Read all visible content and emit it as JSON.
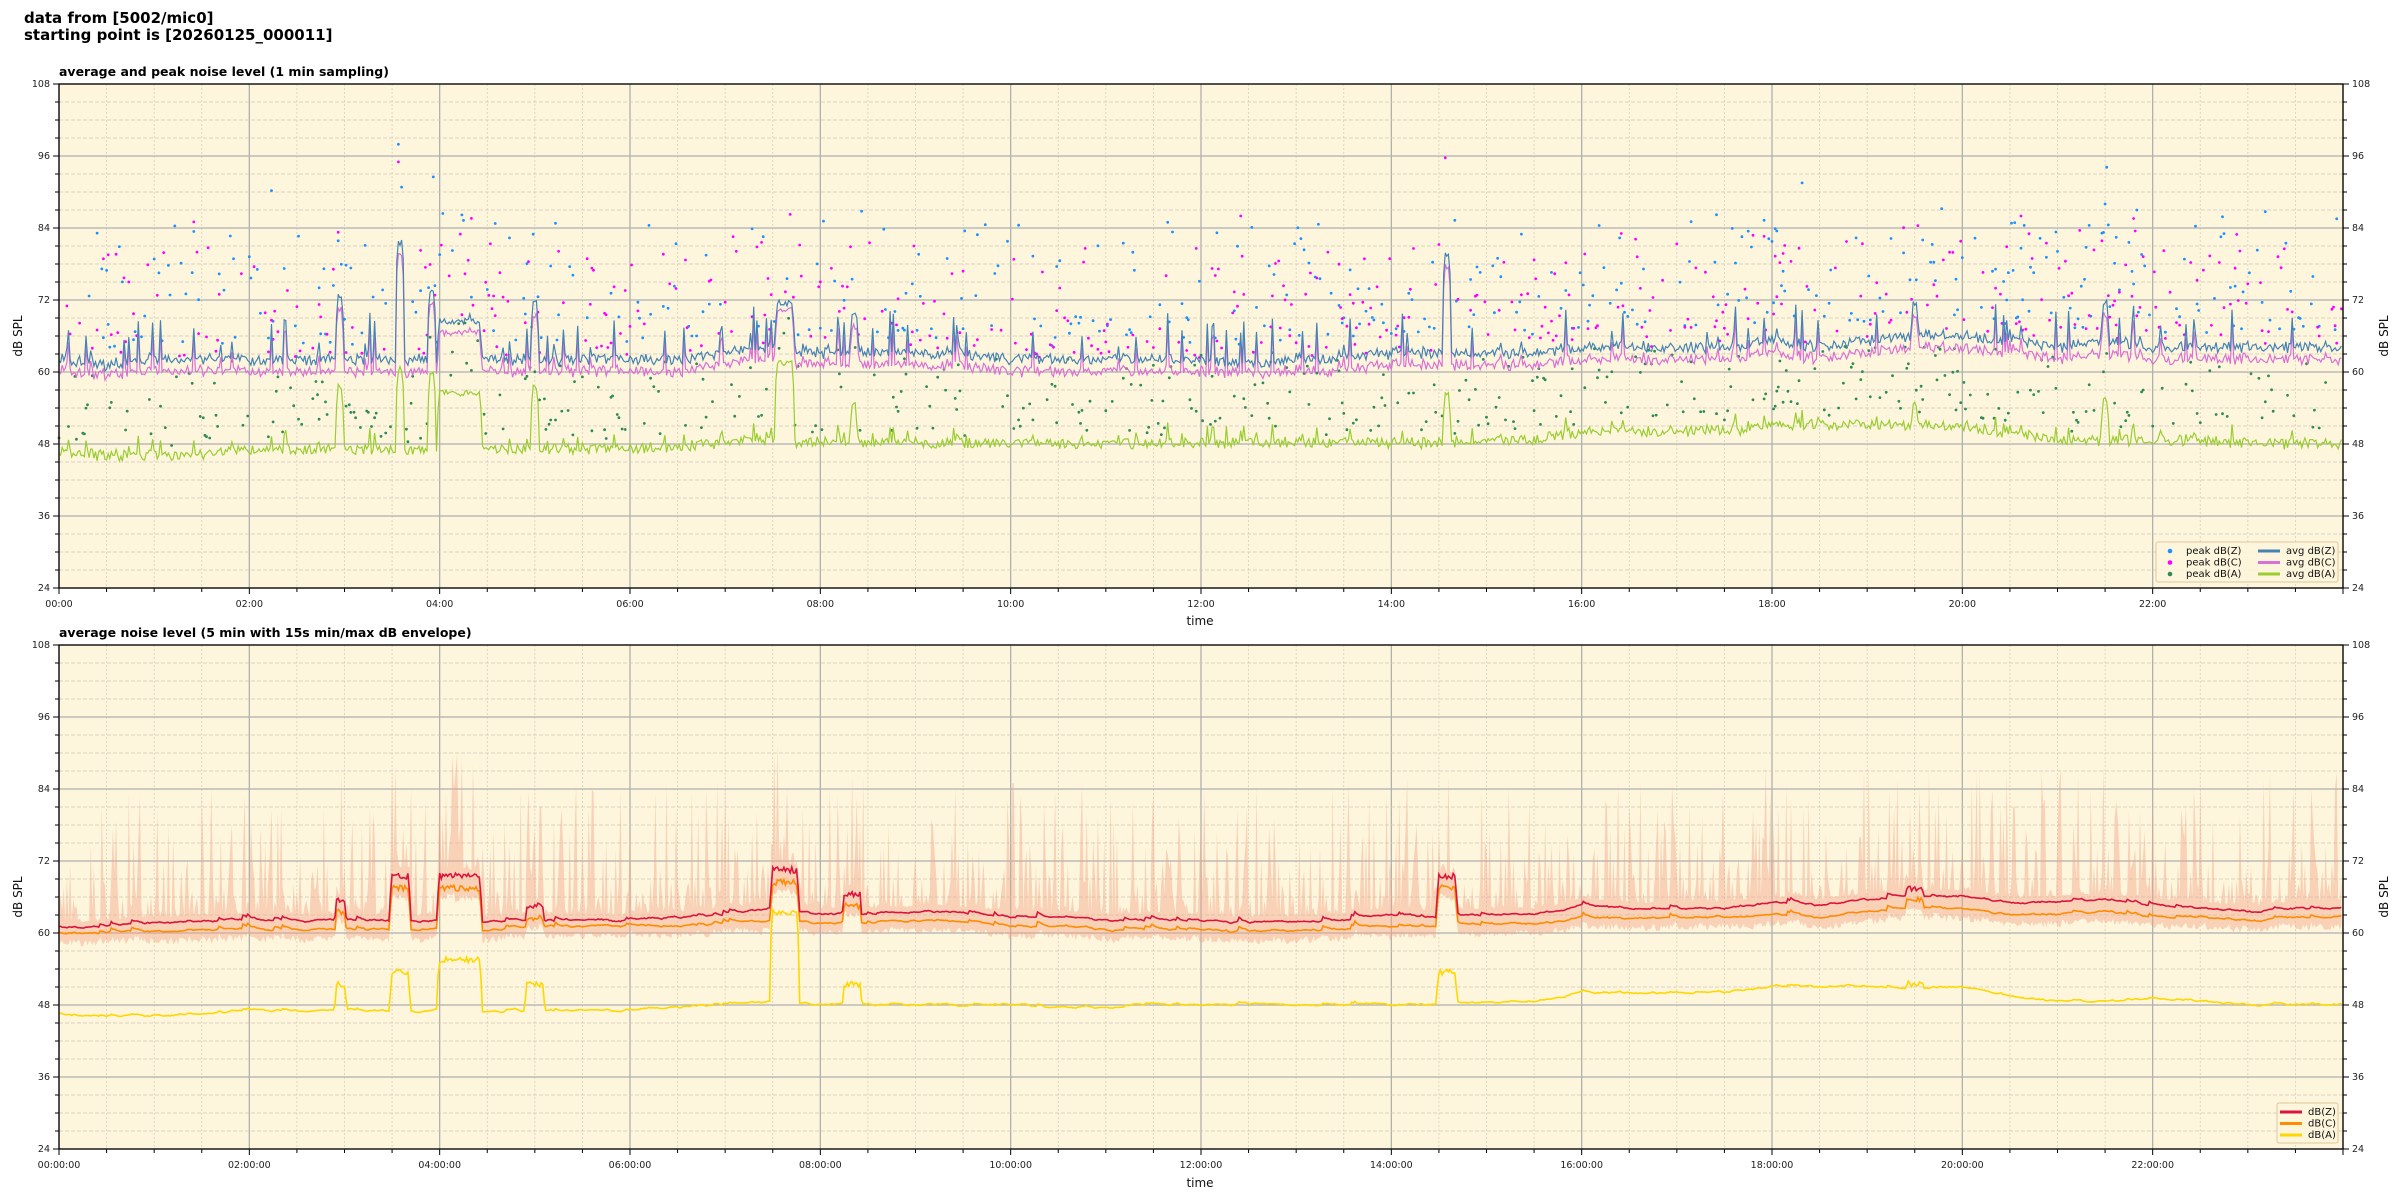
{
  "header": {
    "line1": "data from [5002/mic0]",
    "line2": "starting point is [20260125_000011]"
  },
  "chart_data": [
    {
      "type": "line+scatter",
      "title": "average and peak noise level (1 min sampling)",
      "xlabel": "time",
      "ylabel": "dB SPL",
      "ylim": [
        24,
        108
      ],
      "yticks": [
        "24",
        "36",
        "48",
        "60",
        "72",
        "84",
        "96",
        "108"
      ],
      "xlim": [
        "00:00",
        "24:00"
      ],
      "xticks": [
        "00:00",
        "02:00",
        "04:00",
        "06:00",
        "08:00",
        "10:00",
        "12:00",
        "14:00",
        "16:00",
        "18:00",
        "20:00",
        "22:00"
      ],
      "grid": true,
      "background": "#fdf6dc",
      "legend": "lower-right",
      "sample_interval_min": 30,
      "series": [
        {
          "name": "avg dB(Z)",
          "color": "#4682b4",
          "values": [
            62,
            61,
            62,
            62,
            62,
            62,
            62,
            62,
            62,
            62,
            62,
            62,
            62,
            62,
            63,
            64,
            63,
            63,
            63,
            63,
            62,
            62,
            62,
            62,
            62,
            61,
            62,
            62,
            63,
            63,
            63,
            63,
            64,
            64,
            64,
            64,
            65,
            64,
            65,
            66,
            66,
            65,
            64,
            65,
            64,
            64,
            64,
            64
          ]
        },
        {
          "name": "avg dB(C)",
          "color": "#da70d6",
          "values": [
            60,
            59.5,
            60,
            60,
            60,
            60,
            60,
            60,
            60,
            60,
            60,
            60,
            60,
            60,
            61,
            62,
            61,
            61,
            61,
            61,
            60,
            60,
            60,
            60,
            60,
            59.5,
            60,
            60,
            61,
            61,
            61,
            61,
            62,
            62,
            62,
            62,
            63,
            62,
            63,
            64,
            64,
            63,
            62,
            63,
            62,
            62,
            62,
            62
          ]
        },
        {
          "name": "avg dB(A)",
          "color": "#9acd32",
          "values": [
            46.5,
            46,
            46,
            46,
            47,
            47,
            47,
            47,
            47,
            47,
            47,
            47,
            47,
            47.5,
            48,
            48.5,
            48,
            48,
            48,
            48,
            48,
            48,
            48,
            48,
            48,
            48,
            48,
            48,
            48,
            48,
            48.5,
            48.5,
            50,
            50,
            50,
            50,
            51,
            51,
            51,
            51,
            51,
            49.5,
            48.5,
            48.5,
            48.5,
            48.5,
            48,
            48
          ]
        }
      ],
      "peaks": [
        {
          "name": "peak dB(Z)",
          "color": "#1e90ff"
        },
        {
          "name": "peak dB(C)",
          "color": "#ff00ff"
        },
        {
          "name": "peak dB(A)",
          "color": "#2e8b57"
        }
      ],
      "events": [
        {
          "start": "02:56",
          "end": "02:58",
          "z": 73,
          "c": 71,
          "a": 58
        },
        {
          "start": "03:34",
          "end": "03:36",
          "z": 82,
          "c": 80,
          "a": 61
        },
        {
          "start": "03:54",
          "end": "03:56",
          "z": 74,
          "c": 72,
          "a": 60
        },
        {
          "start": "04:00",
          "end": "04:25",
          "z": 69,
          "c": 67,
          "a": 57
        },
        {
          "start": "04:59",
          "end": "05:01",
          "z": 72,
          "c": 70,
          "a": 58
        },
        {
          "start": "07:33",
          "end": "07:42",
          "z": 72,
          "c": 71,
          "a": 62
        },
        {
          "start": "08:20",
          "end": "08:22",
          "z": 70,
          "c": 68,
          "a": 55
        },
        {
          "start": "14:34",
          "end": "14:36",
          "z": 80,
          "c": 78,
          "a": 57
        },
        {
          "start": "19:29",
          "end": "19:31",
          "z": 72,
          "c": 70,
          "a": 55
        },
        {
          "start": "21:29",
          "end": "21:31",
          "z": 72,
          "c": 70,
          "a": 56
        }
      ]
    },
    {
      "type": "line+area",
      "title": "average noise level (5 min with 15s min/max dB envelope)",
      "xlabel": "time",
      "ylabel": "dB SPL",
      "ylim": [
        24,
        108
      ],
      "yticks": [
        "24",
        "36",
        "48",
        "60",
        "72",
        "84",
        "96",
        "108"
      ],
      "xlim": [
        "00:00:00",
        "24:00:00"
      ],
      "xticks": [
        "00:00:00",
        "02:00:00",
        "04:00:00",
        "06:00:00",
        "08:00:00",
        "10:00:00",
        "12:00:00",
        "14:00:00",
        "16:00:00",
        "18:00:00",
        "20:00:00",
        "22:00:00"
      ],
      "grid": true,
      "background": "#fdf6dc",
      "legend": "lower-right",
      "envelope_color": "#f2a48a",
      "sample_interval_min": 30,
      "series": [
        {
          "name": "dB(Z)",
          "color": "#dc143c",
          "values": [
            61,
            61,
            61.5,
            62,
            62,
            62,
            62,
            62,
            62,
            62,
            62,
            62,
            62,
            62.5,
            63,
            64,
            63,
            63,
            63.5,
            63.5,
            62.5,
            62.5,
            62,
            62,
            62,
            61.5,
            62,
            62,
            63,
            62.5,
            63,
            63,
            64.5,
            64,
            64,
            64,
            65,
            64.5,
            65.5,
            66,
            66,
            65,
            65,
            65.5,
            64.5,
            64,
            63.5,
            64
          ]
        },
        {
          "name": "dB(C)",
          "color": "#ff8c00",
          "values": [
            60,
            60,
            60,
            60.5,
            60.5,
            60.5,
            60.5,
            60.5,
            60.5,
            60.5,
            61,
            61,
            61,
            61,
            61.5,
            62,
            61.5,
            61.5,
            62,
            62,
            61,
            61,
            60.5,
            60.5,
            60.5,
            60,
            60.5,
            60.5,
            61,
            61,
            61.5,
            61.5,
            62.5,
            62.5,
            62.5,
            62.5,
            63,
            62.5,
            63.5,
            64,
            64,
            63,
            63,
            63.5,
            62.5,
            62.5,
            62,
            62.5
          ]
        },
        {
          "name": "dB(A)",
          "color": "#ffd700",
          "values": [
            46.5,
            46,
            46,
            46.5,
            47,
            47,
            47,
            47,
            47,
            47,
            47,
            47,
            47,
            47.5,
            48,
            48.5,
            48,
            48,
            48,
            48,
            48,
            47.5,
            47.5,
            48,
            48,
            48,
            48,
            48,
            48,
            48,
            48.5,
            48.5,
            50,
            50,
            50,
            50,
            51,
            51,
            51,
            50.5,
            51,
            49.5,
            48.5,
            48.5,
            49,
            48.5,
            48,
            48
          ]
        }
      ],
      "events": [
        {
          "start": "02:55",
          "end": "03:00",
          "z": 66,
          "c": 64,
          "a": 52
        },
        {
          "start": "03:30",
          "end": "03:40",
          "z": 70,
          "c": 68,
          "a": 54
        },
        {
          "start": "04:00",
          "end": "04:25",
          "z": 70,
          "c": 68,
          "a": 56
        },
        {
          "start": "04:55",
          "end": "05:05",
          "z": 65,
          "c": 63,
          "a": 52
        },
        {
          "start": "07:30",
          "end": "07:45",
          "z": 71,
          "c": 69,
          "a": 64
        },
        {
          "start": "08:15",
          "end": "08:25",
          "z": 67,
          "c": 65,
          "a": 52
        },
        {
          "start": "14:30",
          "end": "14:40",
          "z": 70,
          "c": 68,
          "a": 54
        },
        {
          "start": "19:25",
          "end": "19:35",
          "z": 68,
          "c": 66,
          "a": 52
        }
      ]
    }
  ]
}
